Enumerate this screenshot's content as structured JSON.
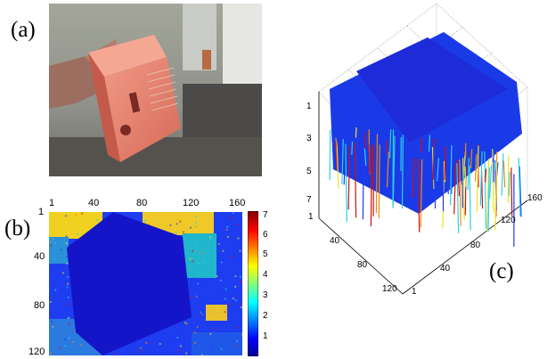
{
  "panel_labels": {
    "a": "(a)",
    "b": "(b)",
    "c": "(c)"
  },
  "panel_b": {
    "top_ticks": [
      "1",
      "40",
      "80",
      "120",
      "160"
    ],
    "left_ticks": [
      "1",
      "40",
      "80",
      "120"
    ],
    "colorbar_ticks": [
      "7",
      "6",
      "5",
      "4",
      "3",
      "2",
      "1"
    ]
  },
  "panel_c": {
    "z_ticks": [
      "1",
      "3",
      "5",
      "7"
    ],
    "front_left_ticks": [
      "1",
      "40",
      "80",
      "120"
    ],
    "front_right_ticks": [
      "40",
      "80",
      "120",
      "160"
    ],
    "corner_tick": "1"
  },
  "colors": {
    "deep_blue": "#1010c8",
    "blue": "#1e3cf0",
    "cyan": "#2ad0e8",
    "yellow": "#f0e020",
    "orange": "#f08a10",
    "red": "#d01010",
    "box_pink": "#e8806a"
  }
}
